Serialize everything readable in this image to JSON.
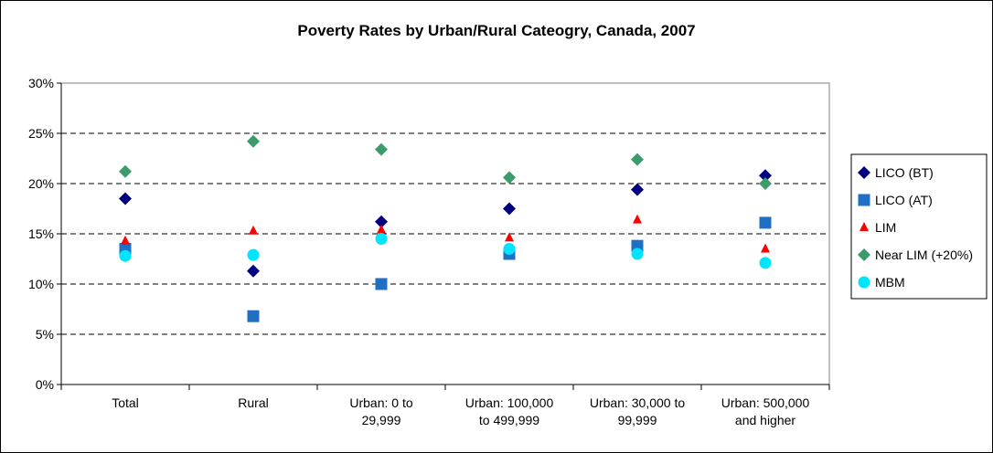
{
  "chart_data": {
    "type": "scatter",
    "title": "Poverty Rates by Urban/Rural Cateogry, Canada, 2007",
    "xlabel": "",
    "ylabel": "",
    "categories": [
      [
        "Total"
      ],
      [
        "Rural"
      ],
      [
        "Urban: 0 to",
        "29,999"
      ],
      [
        "Urban: 100,000",
        "to 499,999"
      ],
      [
        "Urban: 30,000 to",
        "99,999"
      ],
      [
        "Urban: 500,000",
        "and higher"
      ]
    ],
    "ylim": [
      0,
      30
    ],
    "yticks": [
      0,
      5,
      10,
      15,
      20,
      25,
      30
    ],
    "ytick_labels": [
      "0%",
      "5%",
      "10%",
      "15%",
      "20%",
      "25%",
      "30%"
    ],
    "grid": "horizontal dashed",
    "legend_position": "right",
    "series": [
      {
        "name": "LICO (BT)",
        "marker": "diamond",
        "color": "#000080",
        "values": [
          18.5,
          11.3,
          16.2,
          17.5,
          19.4,
          20.8
        ]
      },
      {
        "name": "LICO (AT)",
        "marker": "square",
        "color": "#1F6FC5",
        "values": [
          13.5,
          6.8,
          10.0,
          13.0,
          13.8,
          16.1
        ]
      },
      {
        "name": "LIM",
        "marker": "triangle",
        "color": "#FF0000",
        "values": [
          14.3,
          15.3,
          15.4,
          14.6,
          16.4,
          13.5
        ]
      },
      {
        "name": "Near LIM (+20%)",
        "marker": "diamond",
        "color": "#3C9B6B",
        "values": [
          21.2,
          24.2,
          23.4,
          20.6,
          22.4,
          20.0
        ]
      },
      {
        "name": "MBM",
        "marker": "circle",
        "color": "#00E5FF",
        "values": [
          12.8,
          12.9,
          14.5,
          13.5,
          13.0,
          12.1
        ]
      }
    ]
  }
}
